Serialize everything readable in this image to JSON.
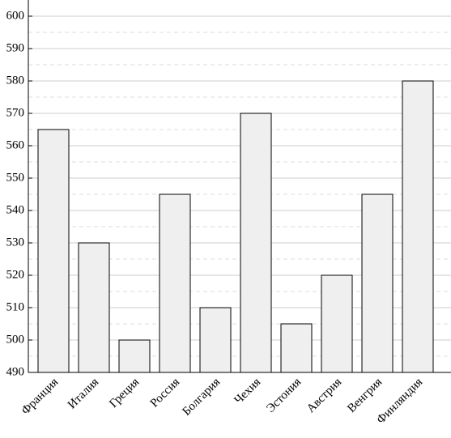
{
  "chart_data": {
    "type": "bar",
    "categories": [
      "Франция",
      "Италия",
      "Греция",
      "Россия",
      "Болгария",
      "Чехия",
      "Эстония",
      "Австрия",
      "Венгрия",
      "Финляндия"
    ],
    "values": [
      565,
      530,
      500,
      545,
      510,
      570,
      505,
      520,
      545,
      580
    ],
    "color": "#efefef",
    "ylim": [
      490,
      605
    ],
    "yticks": [
      490,
      500,
      510,
      520,
      530,
      540,
      550,
      560,
      570,
      580,
      590,
      600
    ],
    "grid": true,
    "minor_grid": true
  }
}
